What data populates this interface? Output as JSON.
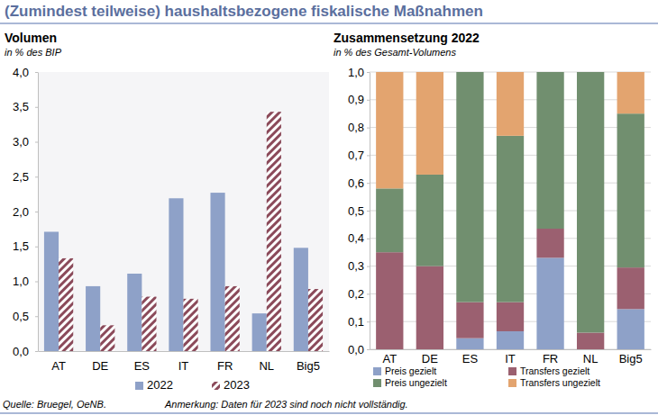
{
  "title": "(Zumindest teilweise) haushaltsbezogene fiskalische Maßnahmen",
  "source": "Quelle: Bruegel, OeNB.",
  "note": "Anmerkung: Daten für 2023 sind noch nicht vollständig.",
  "chart_data": [
    {
      "type": "bar",
      "title": "Volumen",
      "subtitle": "in % des BIP",
      "categories": [
        "AT",
        "DE",
        "ES",
        "IT",
        "FR",
        "NL",
        "Big5"
      ],
      "series": [
        {
          "name": "2022",
          "color": "#8ea1c8",
          "values": [
            1.71,
            0.93,
            1.11,
            2.19,
            2.27,
            0.54,
            1.48
          ]
        },
        {
          "name": "2023",
          "color": "#8b4a5a",
          "values": [
            1.33,
            0.37,
            0.78,
            0.75,
            0.93,
            3.43,
            0.89
          ]
        }
      ],
      "ylim": [
        0,
        4
      ],
      "yticks": [
        {
          "value": 0,
          "label": "0,0"
        },
        {
          "value": 0.5,
          "label": "0,5"
        },
        {
          "value": 1,
          "label": "1,0"
        },
        {
          "value": 1.5,
          "label": "1,5"
        },
        {
          "value": 2,
          "label": "2,0"
        },
        {
          "value": 2.5,
          "label": "2,5"
        },
        {
          "value": 3,
          "label": "3,0"
        },
        {
          "value": 3.5,
          "label": "3,5"
        },
        {
          "value": 4,
          "label": "4,0"
        }
      ],
      "grid": false,
      "legend": "bottom"
    },
    {
      "type": "bar",
      "title": "Zusammensetzung 2022",
      "subtitle": "in % des Gesamt-Volumens",
      "categories": [
        "AT",
        "DE",
        "ES",
        "IT",
        "FR",
        "NL",
        "Big5"
      ],
      "stacked": true,
      "series": [
        {
          "name": "Preis gezielt",
          "color": "#8ea1c8",
          "values": [
            0,
            0,
            0.04,
            0.065,
            0.33,
            0,
            0.145
          ]
        },
        {
          "name": "Transfers gezielt",
          "color": "#9b6070",
          "values": [
            0.35,
            0.3,
            0.13,
            0.105,
            0.105,
            0.06,
            0.15
          ]
        },
        {
          "name": "Preis ungezielt",
          "color": "#718f6f",
          "values": [
            0.23,
            0.33,
            0.83,
            0.6,
            0.565,
            0.94,
            0.555
          ]
        },
        {
          "name": "Transfers ungezielt",
          "color": "#e3a46f",
          "values": [
            0.42,
            0.37,
            0,
            0.23,
            0,
            0,
            0.15
          ]
        }
      ],
      "ylim": [
        0,
        1
      ],
      "yticks": [
        {
          "value": 0,
          "label": "0,0"
        },
        {
          "value": 0.1,
          "label": "0,1"
        },
        {
          "value": 0.2,
          "label": "0,2"
        },
        {
          "value": 0.3,
          "label": "0,3"
        },
        {
          "value": 0.4,
          "label": "0,4"
        },
        {
          "value": 0.5,
          "label": "0,5"
        },
        {
          "value": 0.6,
          "label": "0,6"
        },
        {
          "value": 0.7,
          "label": "0,7"
        },
        {
          "value": 0.8,
          "label": "0,8"
        },
        {
          "value": 0.9,
          "label": "0,9"
        },
        {
          "value": 1,
          "label": "1,0"
        }
      ],
      "grid": true,
      "legend": "bottom"
    }
  ]
}
